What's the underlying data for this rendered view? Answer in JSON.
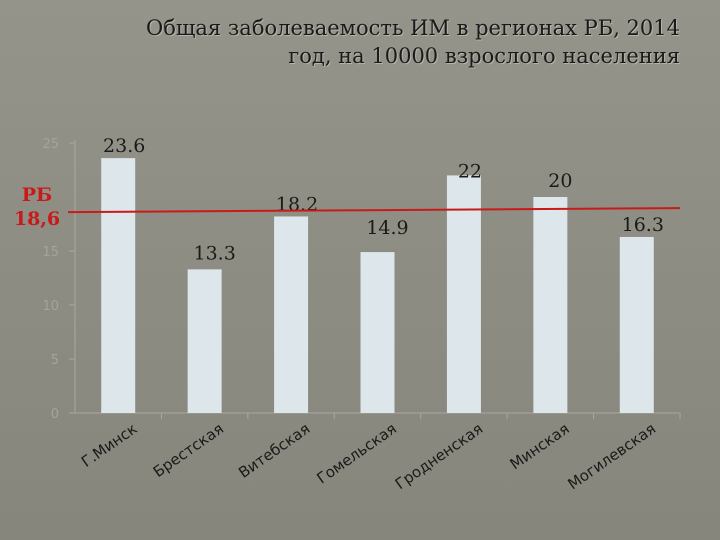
{
  "title_line1": "Общая заболеваемость ИМ в регионах РБ, 2014",
  "title_line2": "год, на 10000 взрослого населения",
  "chart_data": {
    "type": "bar",
    "title": "Общая заболеваемость ИМ в регионах РБ, 2014 год, на 10000 взрослого населения",
    "categories": [
      "Г.Минск",
      "Брестская",
      "Витебская",
      "Гомельская",
      "Гродненская",
      "Минская",
      "Могилевская"
    ],
    "values": [
      23.6,
      13.3,
      18.2,
      14.9,
      22,
      20,
      16.3
    ],
    "data_labels": [
      "23.6",
      "13.3",
      "18.2",
      "14.9",
      "22",
      "20",
      "16.3"
    ],
    "ylim": [
      0,
      25
    ],
    "yticks": [
      0,
      5,
      10,
      15,
      25
    ],
    "reference_line": {
      "value": 18.6,
      "label_line1": "РБ",
      "label_line2": "18,6",
      "color": "#c91a1a"
    },
    "bar_color": "#dde6ea",
    "grid": false,
    "legend": "none"
  }
}
